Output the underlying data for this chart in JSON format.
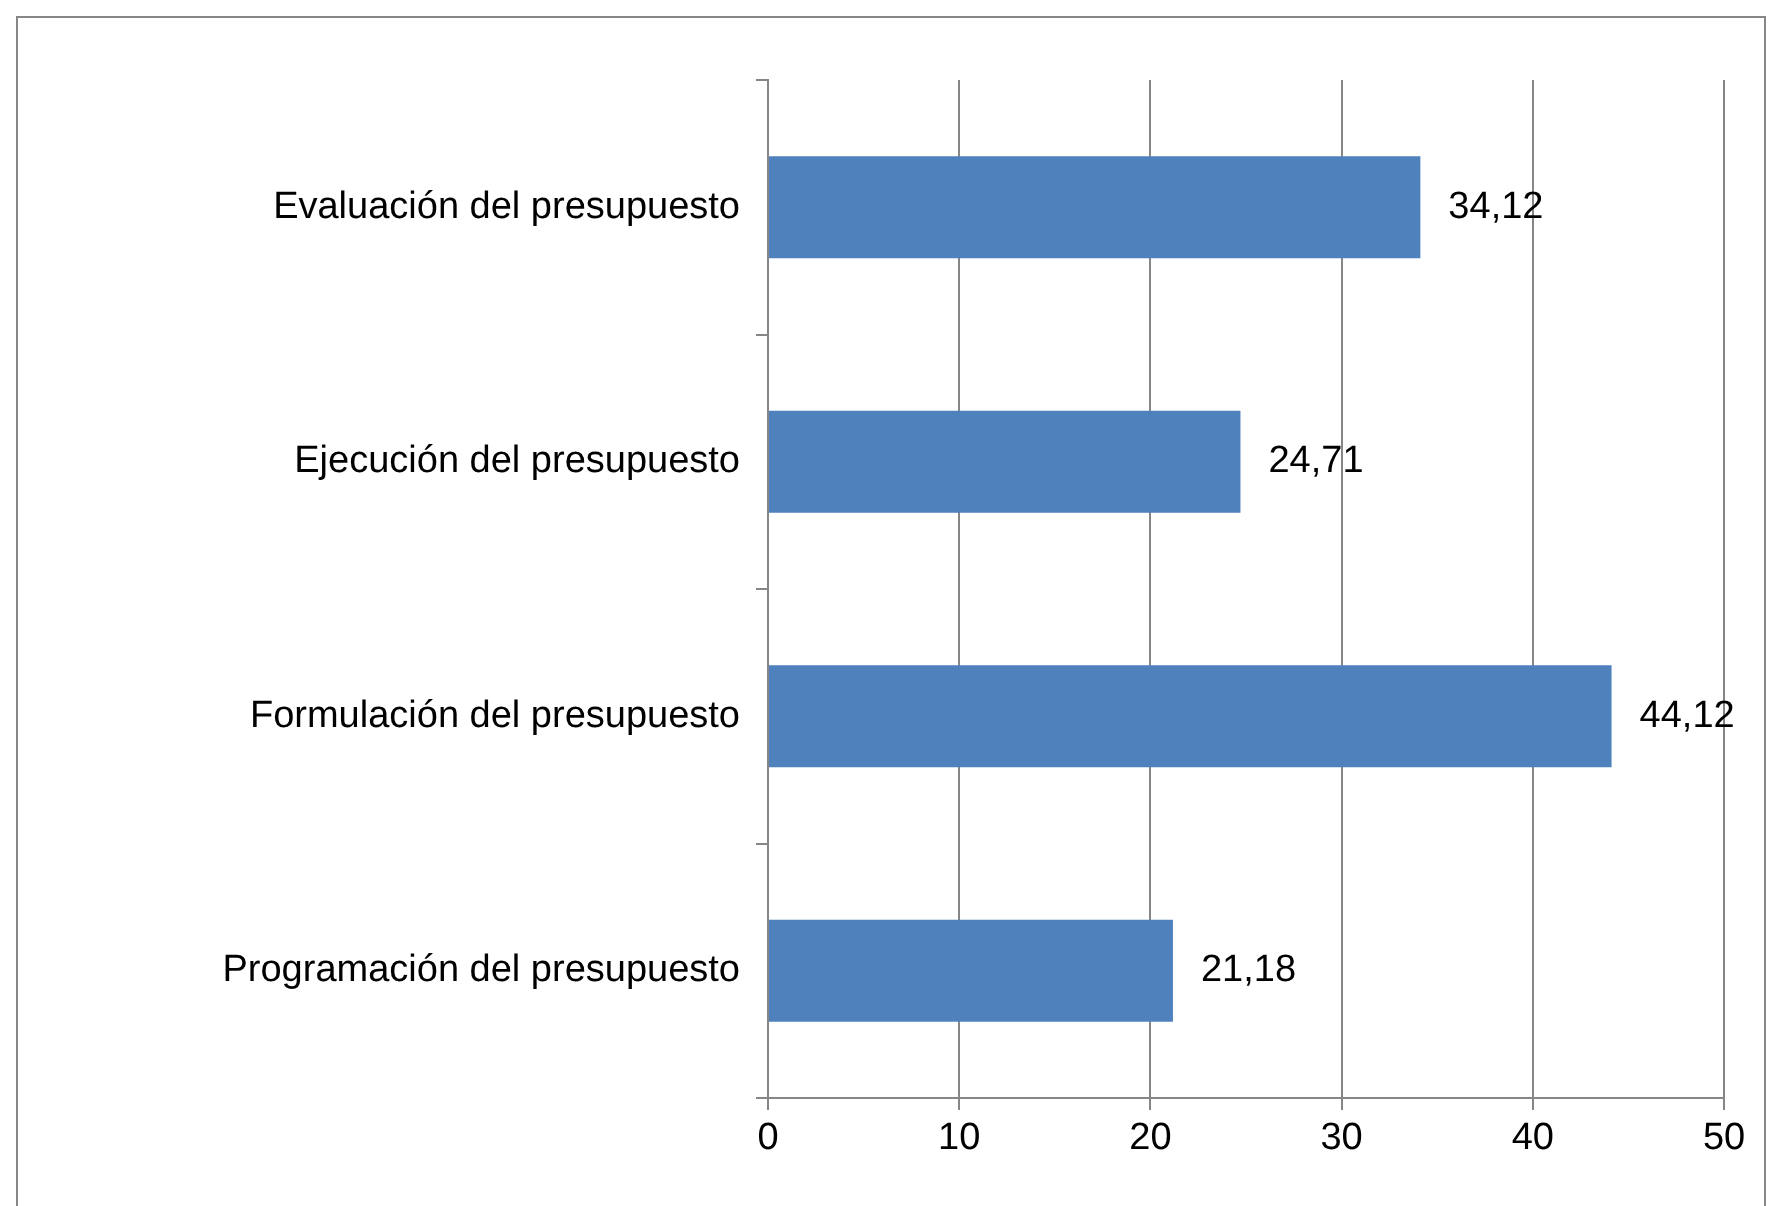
{
  "chart_data": {
    "type": "bar",
    "orientation": "horizontal",
    "categories": [
      "Evaluación del presupuesto",
      "Ejecución del presupuesto",
      "Formulación del presupuesto",
      "Programación del presupuesto"
    ],
    "values": [
      34.12,
      24.71,
      44.12,
      21.18
    ],
    "value_labels": [
      "34,12",
      "24,71",
      "44,12",
      "21,18"
    ],
    "color": "#4f81bd",
    "xlim": [
      0,
      50
    ],
    "xticks": [
      0,
      10,
      20,
      30,
      40,
      50
    ],
    "grid": "x",
    "legend": false
  }
}
